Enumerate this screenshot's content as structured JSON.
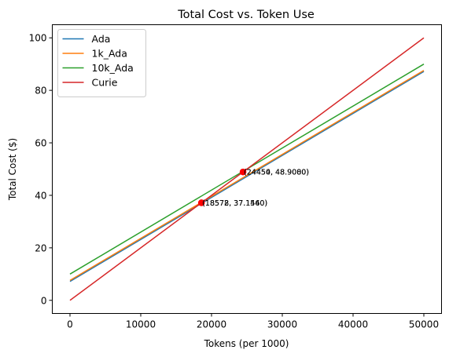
{
  "chart_data": {
    "type": "line",
    "title": "Total Cost vs. Token Use",
    "xlabel": "Tokens (per 1000)",
    "ylabel": "Total Cost ($)",
    "xlim": [
      -2500,
      52500
    ],
    "ylim": [
      -5,
      105
    ],
    "xticks": [
      0,
      10000,
      20000,
      30000,
      40000,
      50000
    ],
    "yticks": [
      0,
      20,
      40,
      60,
      80,
      100
    ],
    "grid": false,
    "legend_position": "upper-left",
    "x": [
      0,
      50000
    ],
    "series": [
      {
        "name": "Ada",
        "color": "#1f77b4",
        "values": [
          7.2,
          87.2
        ]
      },
      {
        "name": "1k_Ada",
        "color": "#ff7f0e",
        "values": [
          7.6,
          87.6
        ]
      },
      {
        "name": "10k_Ada",
        "color": "#2ca02c",
        "values": [
          10.0,
          90.0
        ]
      },
      {
        "name": "Curie",
        "color": "#d62728",
        "values": [
          0,
          100
        ]
      }
    ],
    "annotations": [
      {
        "x": 18572,
        "y": 37.144,
        "label": "(18572, 37.1440)"
      },
      {
        "x": 18578,
        "y": 37.156,
        "label": "(18578, 37.1560)"
      },
      {
        "x": 24450,
        "y": 48.9,
        "label": "(24450, 48.9000)"
      },
      {
        "x": 24454,
        "y": 48.908,
        "label": "(24454, 48.9080)"
      }
    ],
    "marker_color": "#ff0000"
  }
}
